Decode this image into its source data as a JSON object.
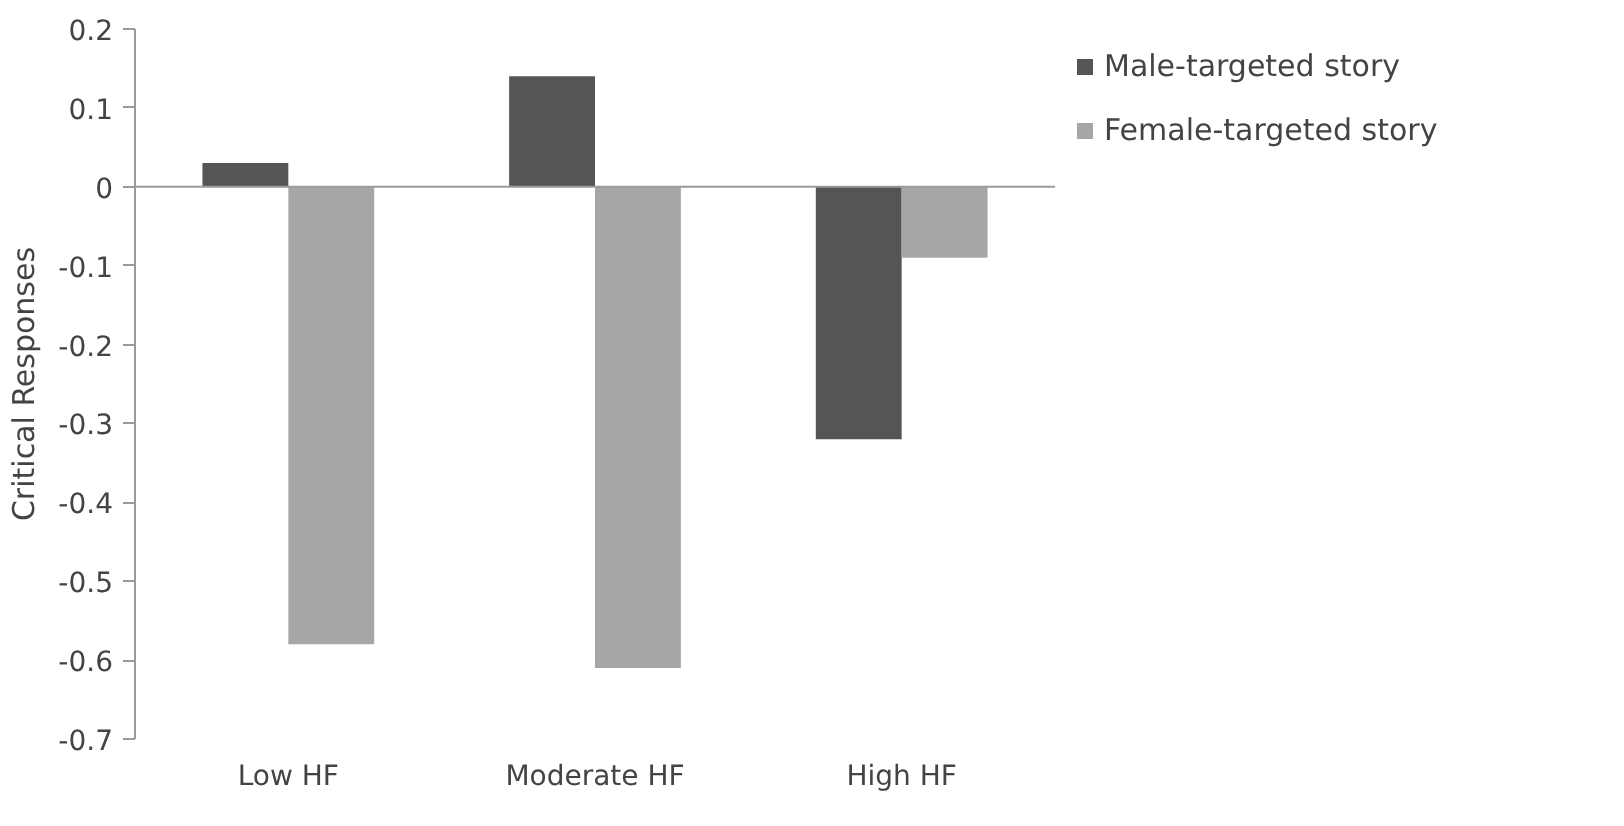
{
  "chart_data": {
    "type": "bar",
    "ylabel": "Critical Responses",
    "categories": [
      "Low HF",
      "Moderate HF",
      "High HF"
    ],
    "series": [
      {
        "name": "Male-targeted story",
        "color": "#555555",
        "values": [
          0.03,
          0.14,
          -0.32
        ]
      },
      {
        "name": "Female-targeted story",
        "color": "#a6a6a6",
        "values": [
          -0.58,
          -0.61,
          -0.09
        ]
      }
    ],
    "ylim": [
      -0.7,
      0.2
    ],
    "yticks": [
      -0.7,
      -0.6,
      -0.5,
      -0.4,
      -0.3,
      -0.2,
      -0.1,
      0,
      0.1,
      0.2
    ],
    "ref_lines": [
      {
        "axis": "y",
        "value": 0,
        "color": "#9a9a9a"
      }
    ],
    "grid": false,
    "legend": "right"
  }
}
